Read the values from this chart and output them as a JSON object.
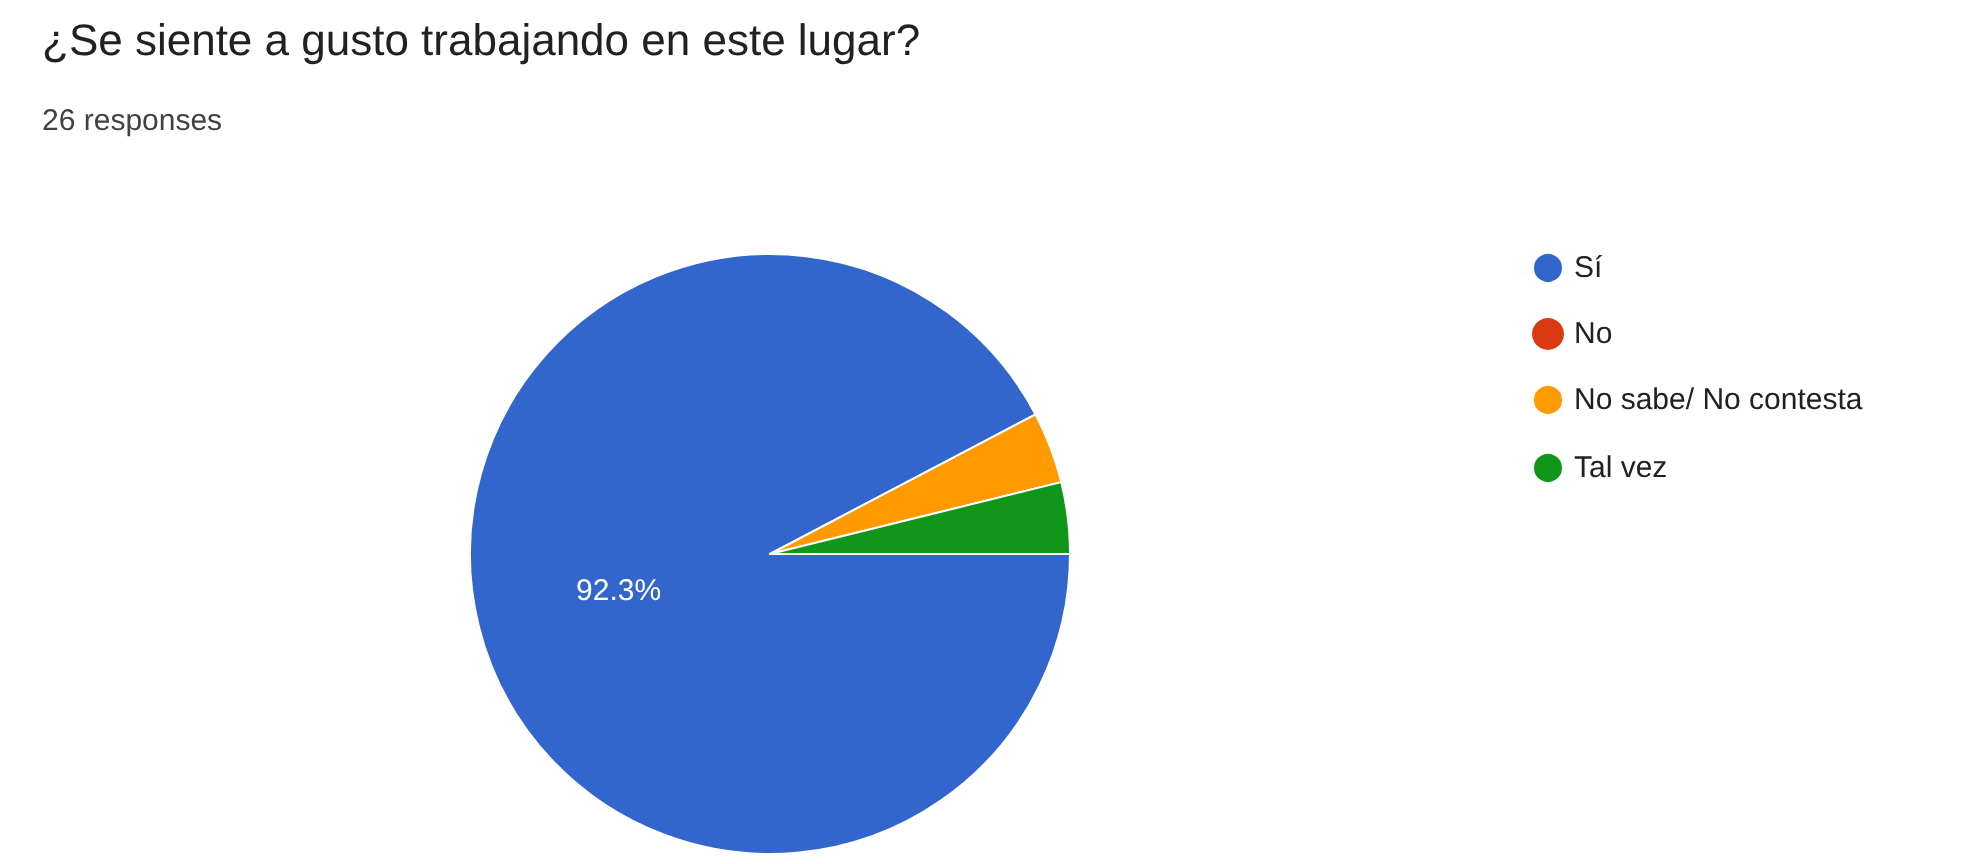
{
  "chart_data": {
    "type": "pie",
    "title": "¿Se siente a gusto trabajando en este lugar?",
    "subtitle": "26 responses",
    "categories": [
      "Sí",
      "No",
      "No sabe/ No contesta",
      "Tal vez"
    ],
    "values": [
      92.3,
      0,
      3.85,
      3.85
    ],
    "colors": [
      "#3366cc",
      "#dc3912",
      "#ff9900",
      "#109618"
    ],
    "value_labels": [
      "92.3%",
      null,
      null,
      null
    ],
    "legend": "right"
  }
}
